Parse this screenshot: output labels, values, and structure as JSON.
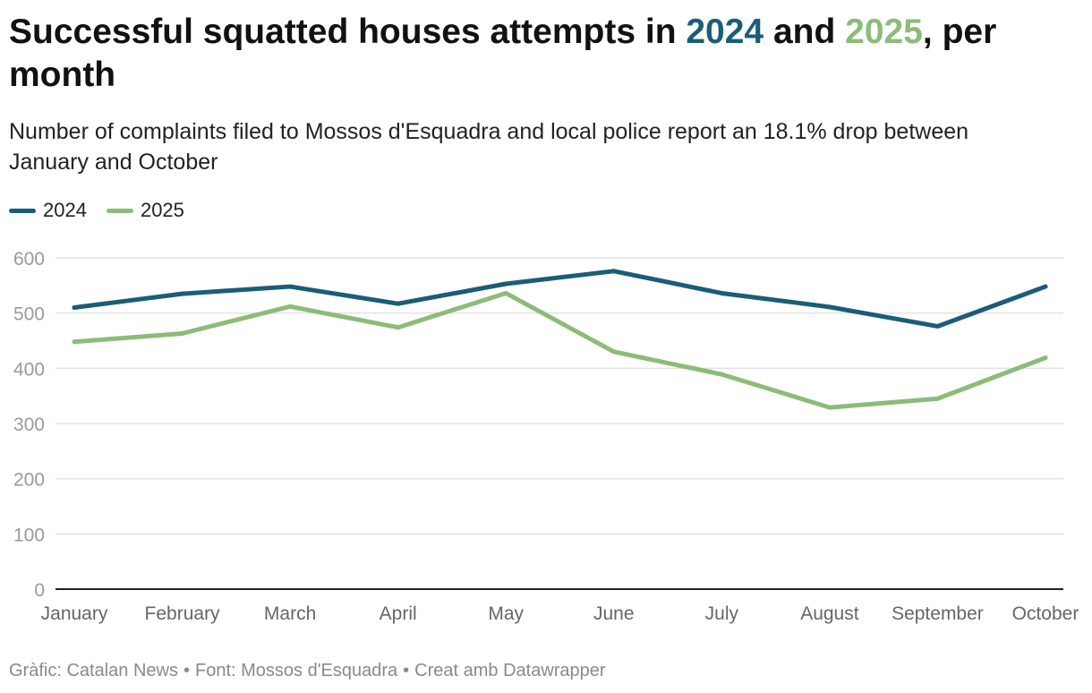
{
  "title": {
    "part1": "Successful squatted houses attempts in ",
    "year1": "2024",
    "part2": " and ",
    "year2": "2025",
    "part3": ", per month"
  },
  "subtitle": "Number of complaints filed to Mossos d'Esquadra and local police report an 18.1% drop between January and October",
  "footer": {
    "graphic": "Gràfic: Catalan News",
    "source": "Font: Mossos d'Esquadra",
    "credit": "Creat amb Datawrapper",
    "separator": "•"
  },
  "colors": {
    "series_2024": "#1a5d78",
    "series_2025": "#8cbc78",
    "grid": "#e2e2e2",
    "axis": "#222222",
    "tick_label": "#9a9a9a",
    "x_label": "#666666"
  },
  "chart_data": {
    "type": "line",
    "categories": [
      "January",
      "February",
      "March",
      "April",
      "May",
      "June",
      "July",
      "August",
      "September",
      "October"
    ],
    "series": [
      {
        "name": "2024",
        "values": [
          510,
          535,
          548,
          517,
          553,
          576,
          536,
          511,
          476,
          548
        ]
      },
      {
        "name": "2025",
        "values": [
          448,
          463,
          512,
          474,
          536,
          430,
          389,
          329,
          345,
          419
        ]
      }
    ],
    "yticks": [
      0,
      100,
      200,
      300,
      400,
      500,
      600
    ],
    "ylim": [
      0,
      600
    ],
    "grid": true,
    "legend": "top-left"
  }
}
